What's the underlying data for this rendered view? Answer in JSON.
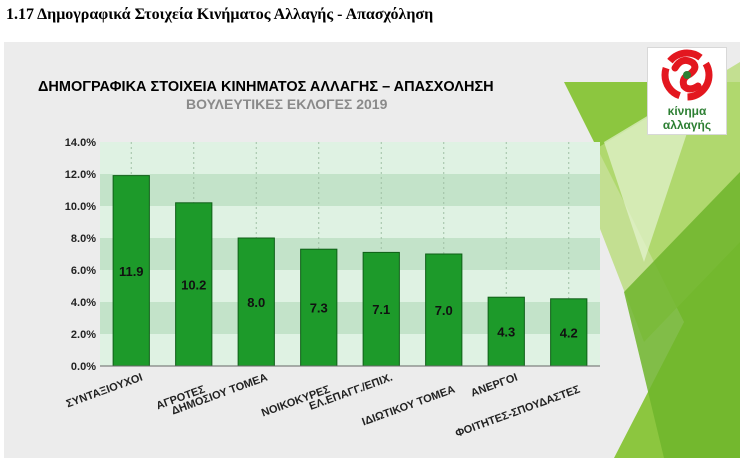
{
  "heading": "1.17 Δημογραφικά Στοιχεία Κινήματος Αλλαγής - Απασχόληση",
  "logo": {
    "line1": "κίνημα",
    "line2": "αλλαγής"
  },
  "colors": {
    "bar": "#1d9a2a",
    "bar_stroke": "#0f5f17",
    "band_dark": "#c3e3c9",
    "band_light": "#dff2e3",
    "accent": "#8cc63f",
    "logo_red": "#e3171f",
    "logo_green": "#2d7f33"
  },
  "chart_data": {
    "type": "bar",
    "title": "ΔΗΜΟΓΡΑΦΙΚΑ ΣΤΟΙΧΕΙΑ ΚΙΝΗΜΑΤΟΣ ΑΛΛΑΓΗΣ – ΑΠΑΣΧΟΛΗΣΗ",
    "subtitle": "ΒΟΥΛΕΥΤΙΚΕΣ ΕΚΛΟΓΕΣ 2019",
    "categories": [
      "ΣΥΝΤΑΞΙΟΥΧΟΙ",
      "ΑΓΡΟΤΕΣ",
      "ΔΗΜΟΣΙΟΥ ΤΟΜΕΑ",
      "ΝΟΙΚΟΚΥΡΕΣ",
      "ΕΛ.ΕΠΑΓΓ./ΕΠΙΧ.",
      "ΙΔΙΩΤΙΚΟΥ ΤΟΜΕΑ",
      "ΑΝΕΡΓΟΙ",
      "ΦΟΙΤΗΤΕΣ-ΣΠΟΥΔΑΣΤΕΣ"
    ],
    "values": [
      11.9,
      10.2,
      8.0,
      7.3,
      7.1,
      7.0,
      4.3,
      4.2
    ],
    "value_labels": [
      "11.9",
      "10.2",
      "8.0",
      "7.3",
      "7.1",
      "7.0",
      "4.3",
      "4.2"
    ],
    "ylim": [
      0,
      14
    ],
    "yticks": [
      "0.0%",
      "2.0%",
      "4.0%",
      "6.0%",
      "8.0%",
      "10.0%",
      "12.0%",
      "14.0%"
    ],
    "grid": "alternating horizontal bands",
    "xlabel": "",
    "ylabel": ""
  }
}
